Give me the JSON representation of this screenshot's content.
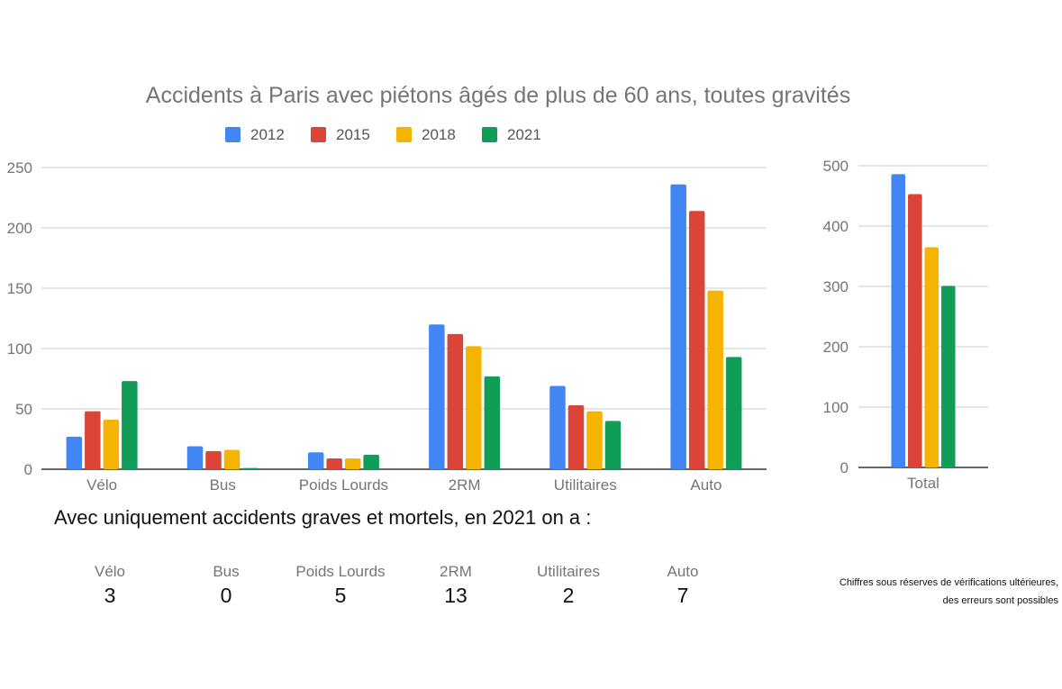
{
  "chart_data": [
    {
      "type": "bar",
      "title": "Accidents à Paris avec piétons âgés de plus de 60 ans, toutes gravités",
      "categories": [
        "Vélo",
        "Bus",
        "Poids Lourds",
        "2RM",
        "Utilitaires",
        "Auto"
      ],
      "series": [
        {
          "name": "2012",
          "color": "#4285F4",
          "values": [
            27,
            19,
            14,
            120,
            69,
            236
          ]
        },
        {
          "name": "2015",
          "color": "#DB4437",
          "values": [
            48,
            15,
            9,
            112,
            53,
            214
          ]
        },
        {
          "name": "2018",
          "color": "#F4B400",
          "values": [
            41,
            16,
            9,
            102,
            48,
            148
          ]
        },
        {
          "name": "2021",
          "color": "#0F9D58",
          "values": [
            73,
            1,
            12,
            77,
            40,
            93
          ]
        }
      ],
      "yticks": [
        0,
        50,
        100,
        150,
        200,
        250
      ],
      "ylim": [
        0,
        250
      ],
      "legend": "top"
    },
    {
      "type": "bar",
      "title": "",
      "categories": [
        "Total"
      ],
      "series": [
        {
          "name": "2012",
          "color": "#4285F4",
          "values": [
            486
          ]
        },
        {
          "name": "2015",
          "color": "#DB4437",
          "values": [
            453
          ]
        },
        {
          "name": "2018",
          "color": "#F4B400",
          "values": [
            365
          ]
        },
        {
          "name": "2021",
          "color": "#0F9D58",
          "values": [
            301
          ]
        }
      ],
      "yticks": [
        0,
        100,
        200,
        300,
        400,
        500
      ],
      "ylim": [
        0,
        500
      ]
    }
  ],
  "serious": {
    "title": "Avec uniquement accidents graves et mortels, en 2021 on a :",
    "items": [
      {
        "category": "Vélo",
        "value": "3"
      },
      {
        "category": "Bus",
        "value": "0"
      },
      {
        "category": "Poids Lourds",
        "value": "5"
      },
      {
        "category": "2RM",
        "value": "13"
      },
      {
        "category": "Utilitaires",
        "value": "2"
      },
      {
        "category": "Auto",
        "value": "7"
      }
    ]
  },
  "disclaimer": {
    "line1": "Chiffres sous réserves de vérifications ultérieures,",
    "line2": "des erreurs sont possibles"
  }
}
